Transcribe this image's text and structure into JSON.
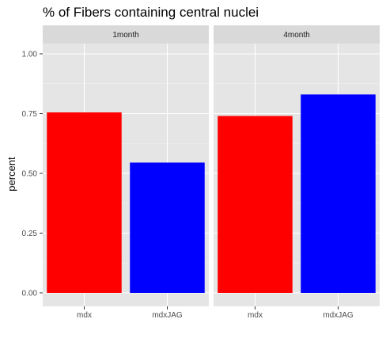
{
  "chart_data": {
    "type": "bar",
    "title": "% of Fibers containing central nuclei",
    "ylabel": "percent",
    "xlabel": "",
    "ylim": [
      0,
      1.05
    ],
    "yticks": [
      0.0,
      0.25,
      0.5,
      0.75,
      1.0
    ],
    "ytick_labels": [
      "0.00",
      "0.25",
      "0.50",
      "0.75",
      "1.00"
    ],
    "categories": [
      "mdx",
      "mdxJAG"
    ],
    "grid": true,
    "legend": "none",
    "colors": {
      "mdx": "#ff0000",
      "mdxJAG": "#0000ff"
    },
    "panel_background": "#e5e5e5",
    "strip_background": "#d9d9d9",
    "facets": [
      {
        "label": "1month",
        "values": [
          0.755,
          0.545
        ]
      },
      {
        "label": "4month",
        "values": [
          0.74,
          0.83
        ]
      }
    ]
  }
}
